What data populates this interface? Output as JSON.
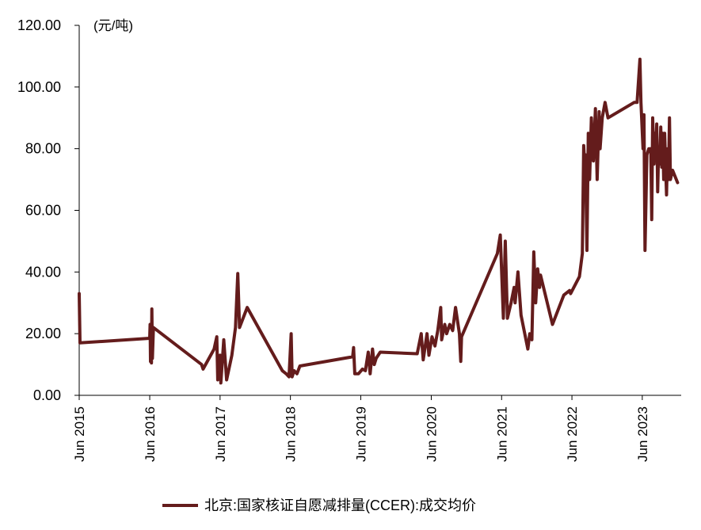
{
  "chart_data": {
    "type": "line",
    "unit_label": "(元/吨)",
    "ylim": [
      0,
      120
    ],
    "y_ticks": [
      "0.00",
      "20.00",
      "40.00",
      "60.00",
      "80.00",
      "100.00",
      "120.00"
    ],
    "x_ticks": [
      "Jun 2015",
      "Jun 2016",
      "Jun 2017",
      "Jun 2018",
      "Jun 2019",
      "Jun 2020",
      "Jun 2021",
      "Jun 2022",
      "Jun 2023"
    ],
    "x_tick_dates": [
      "2015-06",
      "2016-06",
      "2017-06",
      "2018-06",
      "2019-06",
      "2020-06",
      "2021-06",
      "2022-06",
      "2023-06"
    ],
    "grid": false,
    "legend": "bottom",
    "series": [
      {
        "name": "北京:国家核证自愿减排量(CCER):成交均价",
        "color": "#641c1c",
        "points": [
          [
            "2015-06-01",
            33
          ],
          [
            "2015-06-05",
            17
          ],
          [
            "2016-06-01",
            18.5
          ],
          [
            "2016-06-03",
            23
          ],
          [
            "2016-06-05",
            11
          ],
          [
            "2016-06-08",
            22
          ],
          [
            "2016-06-10",
            10.5
          ],
          [
            "2016-06-12",
            28
          ],
          [
            "2016-06-15",
            12
          ],
          [
            "2016-06-20",
            22
          ],
          [
            "2017-02-25",
            10
          ],
          [
            "2017-03-05",
            8.5
          ],
          [
            "2017-05-01",
            15
          ],
          [
            "2017-05-15",
            19
          ],
          [
            "2017-05-20",
            5
          ],
          [
            "2017-06-01",
            13
          ],
          [
            "2017-06-05",
            4
          ],
          [
            "2017-06-20",
            18
          ],
          [
            "2017-07-05",
            5
          ],
          [
            "2017-08-01",
            13
          ],
          [
            "2017-08-20",
            22
          ],
          [
            "2017-09-01",
            39.5
          ],
          [
            "2017-09-10",
            22
          ],
          [
            "2017-10-20",
            28.5
          ],
          [
            "2018-04-20",
            8
          ],
          [
            "2018-05-10",
            7
          ],
          [
            "2018-05-25",
            6
          ],
          [
            "2018-06-05",
            20
          ],
          [
            "2018-06-10",
            6
          ],
          [
            "2018-06-20",
            8
          ],
          [
            "2018-07-05",
            7
          ],
          [
            "2018-07-20",
            9.5
          ],
          [
            "2019-04-20",
            12.5
          ],
          [
            "2019-04-25",
            15.5
          ],
          [
            "2019-05-01",
            7
          ],
          [
            "2019-05-20",
            7
          ],
          [
            "2019-06-10",
            8.5
          ],
          [
            "2019-06-25",
            8
          ],
          [
            "2019-07-10",
            14
          ],
          [
            "2019-07-20",
            7
          ],
          [
            "2019-08-01",
            15
          ],
          [
            "2019-08-10",
            10
          ],
          [
            "2019-08-20",
            12
          ],
          [
            "2019-09-10",
            14
          ],
          [
            "2020-03-20",
            13.5
          ],
          [
            "2020-04-10",
            20
          ],
          [
            "2020-04-20",
            11.5
          ],
          [
            "2020-05-10",
            20
          ],
          [
            "2020-05-20",
            13
          ],
          [
            "2020-06-05",
            19
          ],
          [
            "2020-06-20",
            16
          ],
          [
            "2020-07-05",
            21
          ],
          [
            "2020-07-20",
            28.5
          ],
          [
            "2020-07-25",
            18
          ],
          [
            "2020-08-10",
            23
          ],
          [
            "2020-08-20",
            20
          ],
          [
            "2020-09-05",
            23
          ],
          [
            "2020-09-20",
            21
          ],
          [
            "2020-10-05",
            28.5
          ],
          [
            "2020-10-25",
            20
          ],
          [
            "2020-11-01",
            11
          ],
          [
            "2020-11-05",
            19
          ],
          [
            "2021-05-10",
            46
          ],
          [
            "2021-05-25",
            52
          ],
          [
            "2021-06-10",
            25
          ],
          [
            "2021-06-20",
            50
          ],
          [
            "2021-07-01",
            25
          ],
          [
            "2021-07-20",
            30
          ],
          [
            "2021-08-05",
            35
          ],
          [
            "2021-08-10",
            30
          ],
          [
            "2021-08-25",
            40
          ],
          [
            "2021-09-10",
            26
          ],
          [
            "2021-10-15",
            15
          ],
          [
            "2021-10-25",
            20
          ],
          [
            "2021-11-05",
            18
          ],
          [
            "2021-11-15",
            46.5
          ],
          [
            "2021-11-25",
            30
          ],
          [
            "2021-12-05",
            41
          ],
          [
            "2021-12-15",
            35
          ],
          [
            "2021-12-20",
            39
          ],
          [
            "2022-02-20",
            23
          ],
          [
            "2022-04-20",
            32.5
          ],
          [
            "2022-05-20",
            34
          ],
          [
            "2022-05-25",
            33
          ],
          [
            "2022-07-10",
            38.5
          ],
          [
            "2022-07-25",
            46
          ],
          [
            "2022-08-01",
            81
          ],
          [
            "2022-08-05",
            76
          ],
          [
            "2022-08-10",
            78
          ],
          [
            "2022-08-18",
            47
          ],
          [
            "2022-08-25",
            85
          ],
          [
            "2022-09-01",
            70
          ],
          [
            "2022-09-10",
            90
          ],
          [
            "2022-09-20",
            76
          ],
          [
            "2022-10-01",
            93
          ],
          [
            "2022-10-10",
            70
          ],
          [
            "2022-10-20",
            92
          ],
          [
            "2022-10-25",
            80
          ],
          [
            "2022-11-05",
            90
          ],
          [
            "2022-11-20",
            95
          ],
          [
            "2022-12-05",
            90
          ],
          [
            "2023-04-20",
            95
          ],
          [
            "2023-05-05",
            95
          ],
          [
            "2023-05-20",
            109
          ],
          [
            "2023-05-25",
            95
          ],
          [
            "2023-06-05",
            80
          ],
          [
            "2023-06-10",
            91
          ],
          [
            "2023-06-15",
            47
          ],
          [
            "2023-06-25",
            78
          ],
          [
            "2023-07-05",
            80
          ],
          [
            "2023-07-15",
            80
          ],
          [
            "2023-07-20",
            57
          ],
          [
            "2023-07-25",
            90
          ],
          [
            "2023-08-01",
            75
          ],
          [
            "2023-08-05",
            85
          ],
          [
            "2023-08-10",
            78
          ],
          [
            "2023-08-15",
            88
          ],
          [
            "2023-08-20",
            66
          ],
          [
            "2023-08-25",
            80
          ],
          [
            "2023-08-30",
            75
          ],
          [
            "2023-09-05",
            87
          ],
          [
            "2023-09-10",
            74
          ],
          [
            "2023-09-15",
            85
          ],
          [
            "2023-09-20",
            70
          ],
          [
            "2023-09-25",
            85
          ],
          [
            "2023-10-01",
            73
          ],
          [
            "2023-10-05",
            65
          ],
          [
            "2023-10-10",
            80
          ],
          [
            "2023-10-15",
            70
          ],
          [
            "2023-10-20",
            90
          ],
          [
            "2023-10-25",
            70
          ],
          [
            "2023-11-05",
            73
          ],
          [
            "2023-12-01",
            69
          ]
        ]
      }
    ]
  }
}
